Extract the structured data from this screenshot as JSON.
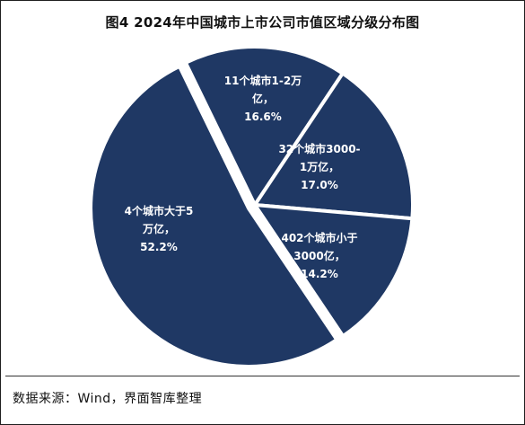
{
  "title": "图4 2024年中国城市上市公司市值区域分级分布图",
  "source": "数据来源：Wind，界面智库整理",
  "colors": {
    "slice": "#1f3864",
    "separator": "#ffffff",
    "label": "#ffffff"
  },
  "chart_data": {
    "type": "pie",
    "title": "图4 2024年中国城市上市公司市值区域分级分布图",
    "slices": [
      {
        "value": 16.6,
        "label_lines": [
          "11个城市1-2万",
          "亿，",
          "16.6%"
        ]
      },
      {
        "value": 17.0,
        "label_lines": [
          "32个城市3000-",
          "1万亿，",
          "17.0%"
        ]
      },
      {
        "value": 14.2,
        "label_lines": [
          "402个城市小于",
          "3000亿，",
          "14.2%"
        ]
      },
      {
        "value": 52.2,
        "label_lines": [
          "4个城市大于5",
          "万亿，",
          "52.2%"
        ]
      }
    ]
  }
}
